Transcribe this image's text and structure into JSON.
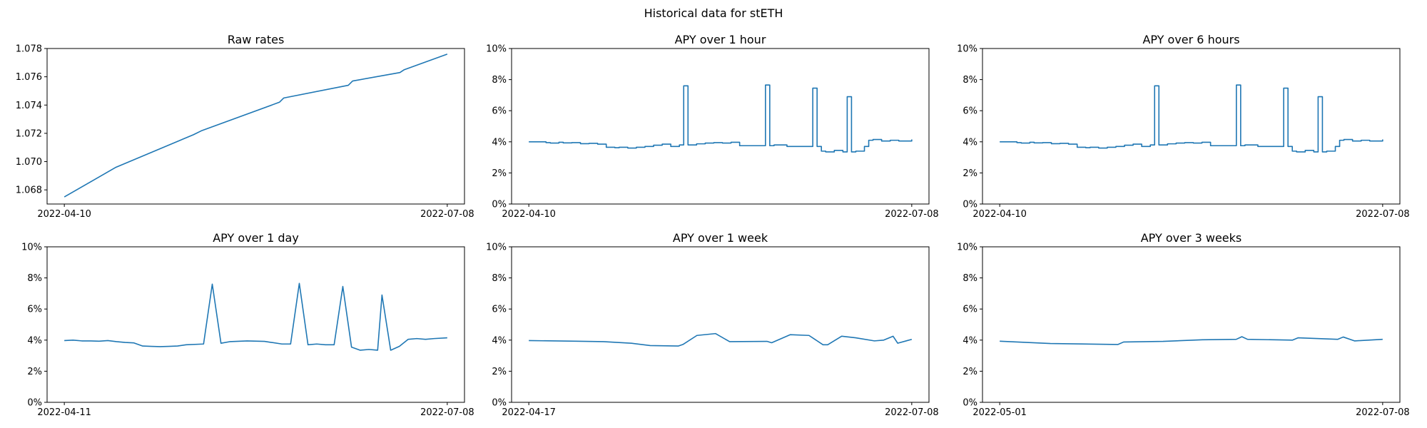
{
  "suptitle": "Historical data for stETH",
  "colors": {
    "line": "#1f77b4",
    "axes": "#000000",
    "background": "#ffffff"
  },
  "chart_data": [
    {
      "type": "line",
      "title": "Raw rates",
      "xlabel": "",
      "ylabel": "",
      "xlim": [
        "2022-04-10",
        "2022-07-08"
      ],
      "xticks": [
        "2022-04-10",
        "2022-07-08"
      ],
      "ylim": [
        1.067,
        1.078
      ],
      "yticks": [
        1.068,
        1.07,
        1.072,
        1.074,
        1.076,
        1.078
      ],
      "ytick_labels": [
        "1.068",
        "1.070",
        "1.072",
        "1.074",
        "1.076",
        "1.078"
      ],
      "grid": false,
      "step": false,
      "series": [
        {
          "x": [
            "2022-04-10",
            "2022-04-22",
            "2022-05-10",
            "2022-05-12",
            "2022-05-30",
            "2022-05-31",
            "2022-06-15",
            "2022-06-16",
            "2022-06-27",
            "2022-06-28",
            "2022-07-08"
          ],
          "y": [
            1.0675,
            1.0696,
            1.0719,
            1.0722,
            1.0742,
            1.0745,
            1.0754,
            1.0757,
            1.0763,
            1.0765,
            1.0776
          ]
        }
      ]
    },
    {
      "type": "line",
      "title": "APY over 1 hour",
      "xlabel": "",
      "ylabel": "",
      "xlim": [
        "2022-04-10",
        "2022-07-08"
      ],
      "xticks": [
        "2022-04-10",
        "2022-07-08"
      ],
      "ylim": [
        0,
        10
      ],
      "yticks": [
        0,
        2,
        4,
        6,
        8,
        10
      ],
      "ytick_labels": [
        "0%",
        "2%",
        "4%",
        "6%",
        "8%",
        "10%"
      ],
      "grid": false,
      "step": true,
      "series": [
        {
          "x": [
            "2022-04-10",
            "2022-04-12",
            "2022-04-14",
            "2022-04-15",
            "2022-04-17",
            "2022-04-18",
            "2022-04-20",
            "2022-04-22",
            "2022-04-24",
            "2022-04-26",
            "2022-04-28",
            "2022-04-30",
            "2022-05-01",
            "2022-05-03",
            "2022-05-05",
            "2022-05-07",
            "2022-05-09",
            "2022-05-11",
            "2022-05-13",
            "2022-05-15",
            "2022-05-16",
            "2022-05-17",
            "2022-05-19",
            "2022-05-21",
            "2022-05-23",
            "2022-05-25",
            "2022-05-27",
            "2022-05-29",
            "2022-05-31",
            "2022-06-04",
            "2022-06-05",
            "2022-06-06",
            "2022-06-09",
            "2022-06-13",
            "2022-06-15",
            "2022-06-16",
            "2022-06-17",
            "2022-06-18",
            "2022-06-20",
            "2022-06-22",
            "2022-06-23",
            "2022-06-24",
            "2022-06-25",
            "2022-06-27",
            "2022-06-28",
            "2022-06-29",
            "2022-07-01",
            "2022-07-03",
            "2022-07-05",
            "2022-07-08"
          ],
          "y": [
            4.0,
            4.0,
            3.95,
            3.92,
            3.97,
            3.93,
            3.95,
            3.88,
            3.9,
            3.85,
            3.65,
            3.62,
            3.65,
            3.6,
            3.65,
            3.7,
            3.78,
            3.85,
            3.7,
            3.8,
            7.6,
            3.8,
            3.87,
            3.92,
            3.95,
            3.92,
            3.97,
            3.75,
            3.75,
            7.65,
            3.75,
            3.8,
            3.7,
            3.7,
            7.45,
            3.7,
            3.4,
            3.35,
            3.45,
            3.35,
            6.9,
            3.35,
            3.4,
            3.7,
            4.1,
            4.15,
            4.05,
            4.1,
            4.05,
            4.15
          ]
        }
      ]
    },
    {
      "type": "line",
      "title": "APY over 6 hours",
      "xlabel": "",
      "ylabel": "",
      "xlim": [
        "2022-04-10",
        "2022-07-08"
      ],
      "xticks": [
        "2022-04-10",
        "2022-07-08"
      ],
      "ylim": [
        0,
        10
      ],
      "yticks": [
        0,
        2,
        4,
        6,
        8,
        10
      ],
      "ytick_labels": [
        "0%",
        "2%",
        "4%",
        "6%",
        "8%",
        "10%"
      ],
      "grid": false,
      "step": true,
      "series": [
        {
          "x": [
            "2022-04-10",
            "2022-04-12",
            "2022-04-14",
            "2022-04-15",
            "2022-04-17",
            "2022-04-18",
            "2022-04-20",
            "2022-04-22",
            "2022-04-24",
            "2022-04-26",
            "2022-04-28",
            "2022-04-30",
            "2022-05-01",
            "2022-05-03",
            "2022-05-05",
            "2022-05-07",
            "2022-05-09",
            "2022-05-11",
            "2022-05-13",
            "2022-05-15",
            "2022-05-16",
            "2022-05-17",
            "2022-05-19",
            "2022-05-21",
            "2022-05-23",
            "2022-05-25",
            "2022-05-27",
            "2022-05-29",
            "2022-05-31",
            "2022-06-04",
            "2022-06-05",
            "2022-06-06",
            "2022-06-09",
            "2022-06-13",
            "2022-06-15",
            "2022-06-16",
            "2022-06-17",
            "2022-06-18",
            "2022-06-20",
            "2022-06-22",
            "2022-06-23",
            "2022-06-24",
            "2022-06-25",
            "2022-06-27",
            "2022-06-28",
            "2022-06-29",
            "2022-07-01",
            "2022-07-03",
            "2022-07-05",
            "2022-07-08"
          ],
          "y": [
            4.0,
            4.0,
            3.95,
            3.92,
            3.97,
            3.93,
            3.95,
            3.88,
            3.9,
            3.85,
            3.65,
            3.62,
            3.65,
            3.6,
            3.65,
            3.7,
            3.78,
            3.85,
            3.7,
            3.8,
            7.6,
            3.8,
            3.87,
            3.92,
            3.95,
            3.92,
            3.97,
            3.75,
            3.75,
            7.65,
            3.75,
            3.8,
            3.7,
            3.7,
            7.45,
            3.7,
            3.4,
            3.35,
            3.45,
            3.35,
            6.9,
            3.35,
            3.4,
            3.7,
            4.1,
            4.15,
            4.05,
            4.1,
            4.05,
            4.15
          ]
        }
      ]
    },
    {
      "type": "line",
      "title": "APY over 1 day",
      "xlabel": "",
      "ylabel": "",
      "xlim": [
        "2022-04-11",
        "2022-07-08"
      ],
      "xticks": [
        "2022-04-11",
        "2022-07-08"
      ],
      "ylim": [
        0,
        10
      ],
      "yticks": [
        0,
        2,
        4,
        6,
        8,
        10
      ],
      "ytick_labels": [
        "0%",
        "2%",
        "4%",
        "6%",
        "8%",
        "10%"
      ],
      "grid": false,
      "step": false,
      "series": [
        {
          "x": [
            "2022-04-11",
            "2022-04-13",
            "2022-04-15",
            "2022-04-17",
            "2022-04-19",
            "2022-04-21",
            "2022-04-23",
            "2022-04-25",
            "2022-04-27",
            "2022-04-29",
            "2022-05-01",
            "2022-05-03",
            "2022-05-05",
            "2022-05-07",
            "2022-05-09",
            "2022-05-13",
            "2022-05-15",
            "2022-05-17",
            "2022-05-19",
            "2022-05-23",
            "2022-05-27",
            "2022-05-31",
            "2022-06-02",
            "2022-06-04",
            "2022-06-06",
            "2022-06-08",
            "2022-06-10",
            "2022-06-12",
            "2022-06-14",
            "2022-06-16",
            "2022-06-18",
            "2022-06-20",
            "2022-06-22",
            "2022-06-23",
            "2022-06-25",
            "2022-06-27",
            "2022-06-29",
            "2022-07-01",
            "2022-07-03",
            "2022-07-05",
            "2022-07-08"
          ],
          "y": [
            3.97,
            4.0,
            3.95,
            3.95,
            3.93,
            3.97,
            3.9,
            3.85,
            3.82,
            3.62,
            3.6,
            3.58,
            3.6,
            3.62,
            3.7,
            3.75,
            7.6,
            3.8,
            3.9,
            3.95,
            3.92,
            3.75,
            3.75,
            7.65,
            3.7,
            3.75,
            3.7,
            3.7,
            7.45,
            3.55,
            3.35,
            3.4,
            3.35,
            6.9,
            3.35,
            3.6,
            4.05,
            4.1,
            4.05,
            4.1,
            4.15
          ]
        }
      ]
    },
    {
      "type": "line",
      "title": "APY over 1 week",
      "xlabel": "",
      "ylabel": "",
      "xlim": [
        "2022-04-17",
        "2022-07-08"
      ],
      "xticks": [
        "2022-04-17",
        "2022-07-08"
      ],
      "ylim": [
        0,
        10
      ],
      "yticks": [
        0,
        2,
        4,
        6,
        8,
        10
      ],
      "ytick_labels": [
        "0%",
        "2%",
        "4%",
        "6%",
        "8%",
        "10%"
      ],
      "grid": false,
      "step": false,
      "series": [
        {
          "x": [
            "2022-04-17",
            "2022-04-27",
            "2022-05-03",
            "2022-05-09",
            "2022-05-13",
            "2022-05-19",
            "2022-05-20",
            "2022-05-23",
            "2022-05-27",
            "2022-05-30",
            "2022-06-07",
            "2022-06-08",
            "2022-06-12",
            "2022-06-16",
            "2022-06-19",
            "2022-06-20",
            "2022-06-23",
            "2022-06-26",
            "2022-06-30",
            "2022-07-02",
            "2022-07-04",
            "2022-07-05",
            "2022-07-08"
          ],
          "y": [
            3.97,
            3.93,
            3.9,
            3.8,
            3.65,
            3.62,
            3.72,
            4.3,
            4.42,
            3.9,
            3.92,
            3.83,
            4.35,
            4.3,
            3.7,
            3.7,
            4.25,
            4.15,
            3.95,
            4.0,
            4.25,
            3.8,
            4.05
          ]
        }
      ]
    },
    {
      "type": "line",
      "title": "APY over 3 weeks",
      "xlabel": "",
      "ylabel": "",
      "xlim": [
        "2022-05-01",
        "2022-07-08"
      ],
      "xticks": [
        "2022-05-01",
        "2022-07-08"
      ],
      "ylim": [
        0,
        10
      ],
      "yticks": [
        0,
        2,
        4,
        6,
        8,
        10
      ],
      "ytick_labels": [
        "0%",
        "2%",
        "4%",
        "6%",
        "8%",
        "10%"
      ],
      "grid": false,
      "step": false,
      "series": [
        {
          "x": [
            "2022-05-01",
            "2022-05-10",
            "2022-05-22",
            "2022-05-23",
            "2022-05-30",
            "2022-06-06",
            "2022-06-12",
            "2022-06-13",
            "2022-06-14",
            "2022-06-22",
            "2022-06-23",
            "2022-06-30",
            "2022-07-01",
            "2022-07-03",
            "2022-07-08"
          ],
          "y": [
            3.93,
            3.78,
            3.72,
            3.88,
            3.92,
            4.02,
            4.05,
            4.22,
            4.05,
            4.0,
            4.15,
            4.05,
            4.2,
            3.95,
            4.05
          ]
        }
      ]
    }
  ]
}
